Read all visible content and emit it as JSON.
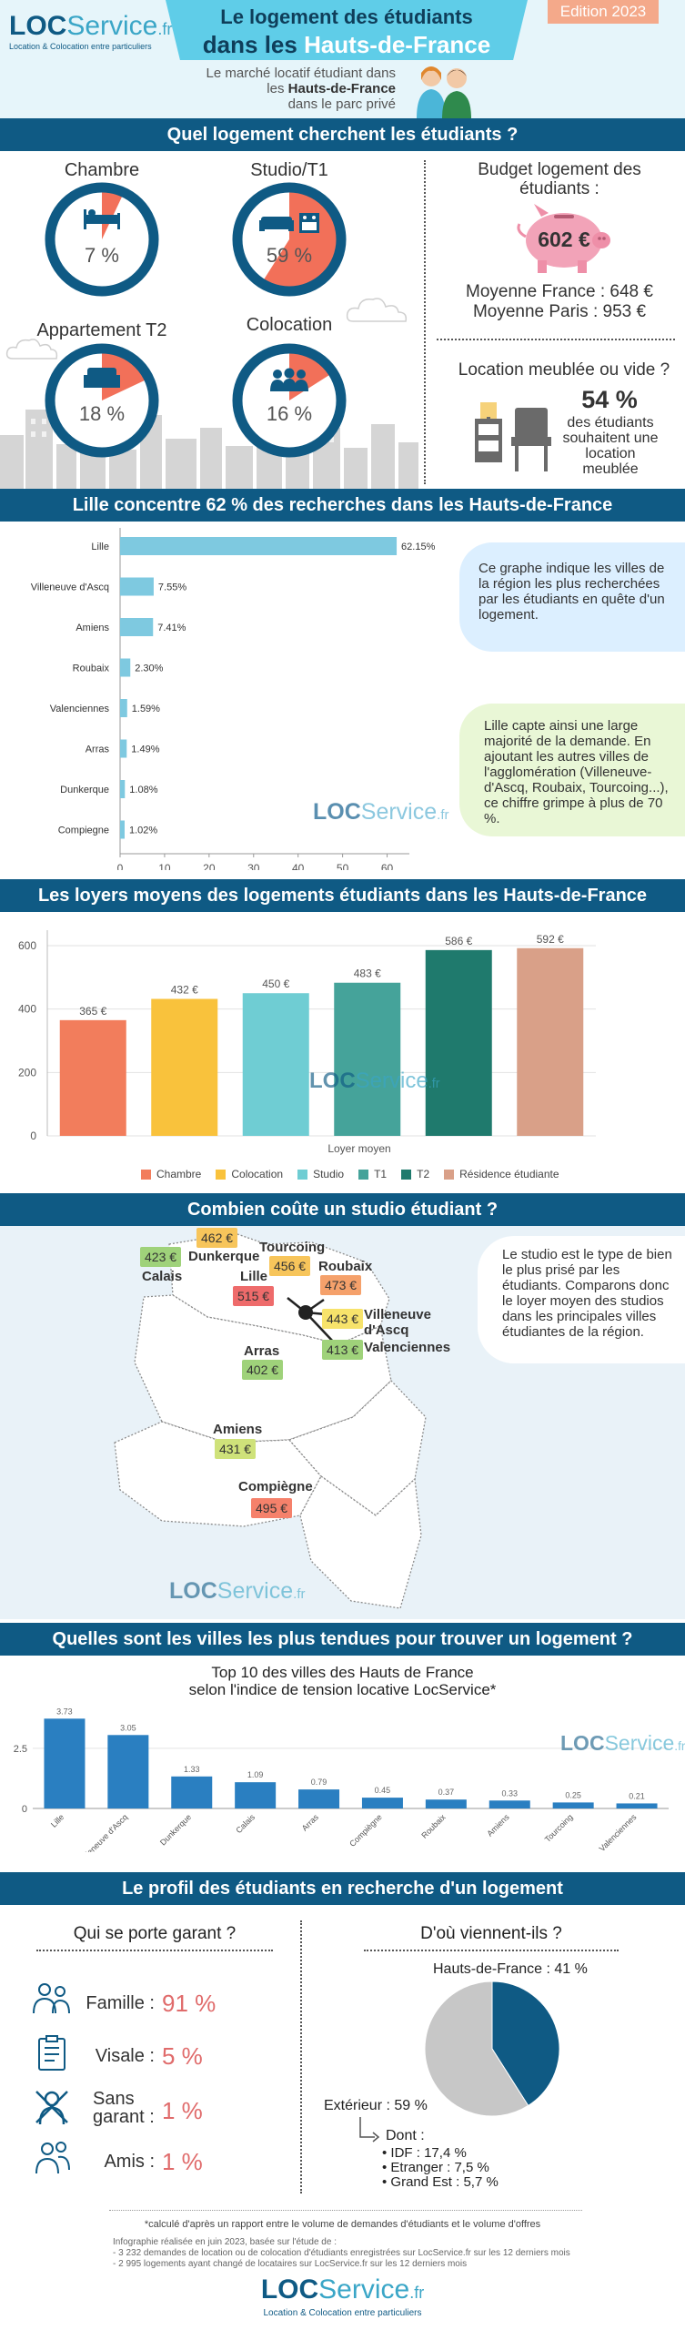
{
  "header": {
    "logo_bold": "LOC",
    "logo_light": "Service",
    "logo_tld": ".fr",
    "logo_tagline": "Location & Colocation entre particuliers",
    "title_line1": "Le logement des étudiants",
    "title_line2_prefix": "dans les ",
    "title_line2_accent": "Hauts-de-France",
    "edition": "Edition 2023",
    "sub1": "Le marché locatif étudiant dans",
    "sub2_prefix": "les ",
    "sub2_bold": "Hauts-de-France",
    "sub3": "dans le parc privé"
  },
  "sec1": {
    "title": "Quel logement cherchent les étudiants ?",
    "rings": [
      {
        "label": "Chambre",
        "pct_text": "7 %",
        "pct": 7,
        "icon": "bed-icon"
      },
      {
        "label": "Studio/T1",
        "pct_text": "59 %",
        "pct": 59,
        "icon": "sofa-kitchen-icon"
      },
      {
        "label": "Appartement T2",
        "pct_text": "18 %",
        "pct": 18,
        "icon": "sofa-icon"
      },
      {
        "label": "Colocation",
        "pct_text": "16 %",
        "pct": 16,
        "icon": "people-icon"
      }
    ],
    "budget_title": "Budget logement des étudiants :",
    "budget_value": "602 €",
    "avg_france": "Moyenne France : 648 €",
    "avg_paris": "Moyenne Paris : 953 €",
    "furn_title": "Location meublée ou vide ?",
    "furn_pct": "54 %",
    "furn_text": "des étudiants souhaitent une location meublée"
  },
  "sec2": {
    "title": "Lille concentre 62 % des recherches dans les Hauts-de-France",
    "note1": "Ce graphe indique les villes de la région les plus recherchées par les étudiants en quête d'un logement.",
    "note2": "Lille capte ainsi une large majorité de la demande. En ajoutant les autres villes de l'agglomération (Villeneuve-d'Ascq, Roubaix, Tourcoing...), ce chiffre grimpe à plus de 70 %."
  },
  "sec3": {
    "title": "Les loyers moyens des logements étudiants dans les Hauts-de-France",
    "xlabel": "Loyer moyen"
  },
  "sec4": {
    "title": "Combien coûte un studio étudiant ?",
    "note": "Le studio est le type de bien le plus prisé par les étudiants. Comparons donc le loyer moyen des studios dans les principales villes étudiantes de la région.",
    "cities": [
      {
        "name": "Calais",
        "price": "423 €",
        "color": "#9fd27a"
      },
      {
        "name": "Dunkerque",
        "price": "462 €",
        "color": "#f7c55b"
      },
      {
        "name": "Tourcoing",
        "price": "456 €",
        "color": "#f7c55b"
      },
      {
        "name": "Roubaix",
        "price": "473 €",
        "color": "#f5a16b"
      },
      {
        "name": "Lille",
        "price": "515 €",
        "color": "#ee6b6b"
      },
      {
        "name": "Villeneuve d'Ascq",
        "price": "443 €",
        "color": "#f7e36b"
      },
      {
        "name": "Valenciennes",
        "price": "413 €",
        "color": "#9fd27a"
      },
      {
        "name": "Arras",
        "price": "402 €",
        "color": "#9fd27a"
      },
      {
        "name": "Amiens",
        "price": "431 €",
        "color": "#cfe27a"
      },
      {
        "name": "Compiègne",
        "price": "495 €",
        "color": "#f5816b"
      }
    ]
  },
  "sec5": {
    "title": "Quelles sont les villes les plus tendues pour trouver un logement  ?",
    "chart_title1": "Top 10 des villes des Hauts de France",
    "chart_title2": "selon l'indice de tension locative LocService*"
  },
  "sec6": {
    "title": "Le profil des étudiants en recherche d'un logement",
    "garant_title": "Qui se porte garant ?",
    "garants": [
      {
        "label": "Famille :",
        "value": "91 %",
        "icon": "family-icon"
      },
      {
        "label": "Visale :",
        "value": "5 %",
        "icon": "document-icon"
      },
      {
        "label": "Sans garant :",
        "value": "1 %",
        "icon": "no-guarantor-icon"
      },
      {
        "label": "Amis :",
        "value": "1 %",
        "icon": "friends-icon"
      }
    ],
    "origin_title": "D'où viennent-ils ?",
    "origin_hdf": "Hauts-de-France : 41 %",
    "origin_ext": "Extérieur : 59 %",
    "dont": "Dont :",
    "details": [
      "IDF : 17,4 %",
      "Etranger : 7,5 %",
      "Grand Est : 5,7 %"
    ]
  },
  "footer": {
    "note": "*calculé d'après un rapport entre le volume de demandes d'étudiants et le volume d'offres",
    "study": "Infographie réalisée en juin 2023, basée sur l'étude de :",
    "line1": "- 3 232 demandes de location ou de colocation d'étudiants enregistrées sur LocService.fr sur les 12 derniers mois",
    "line2": "- 2 995 logements ayant changé de locataires sur LocService.fr sur les 12 derniers mois"
  },
  "colors": {
    "navy": "#0f5a84",
    "ring": "#0f5a84",
    "accent": "#f27059",
    "bar_city": "#7ec9e0",
    "tension_bar": "#2a7fc1",
    "pie_hdf": "#0f5a84",
    "pie_ext": "#c7c7c7"
  },
  "chart_data": [
    {
      "type": "bar",
      "orientation": "horizontal",
      "categories": [
        "Lille",
        "Villeneuve d'Ascq",
        "Amiens",
        "Roubaix",
        "Valenciennes",
        "Arras",
        "Dunkerque",
        "Compiegne"
      ],
      "values": [
        62.15,
        7.55,
        7.41,
        2.3,
        1.59,
        1.49,
        1.08,
        1.02
      ],
      "labels": [
        "62.15%",
        "7.55%",
        "7.41%",
        "2.30%",
        "1.59%",
        "1.49%",
        "1.08%",
        "1.02%"
      ],
      "xlim": [
        0,
        65
      ],
      "xticks": [
        0,
        10,
        20,
        30,
        40,
        50,
        60
      ]
    },
    {
      "type": "bar",
      "categories": [
        "Chambre",
        "Colocation",
        "Studio",
        "T1",
        "T2",
        "Résidence étudiante"
      ],
      "values": [
        365,
        432,
        450,
        483,
        586,
        592
      ],
      "labels": [
        "365 €",
        "432 €",
        "450 €",
        "483 €",
        "586 €",
        "592 €"
      ],
      "colors": [
        "#f27d5c",
        "#f9c23c",
        "#6fcdd3",
        "#45a39a",
        "#1f7a6d",
        "#d9a088"
      ],
      "xlabel": "Loyer moyen",
      "ylim": [
        0,
        620
      ],
      "yticks": [
        0,
        200,
        400,
        600
      ],
      "legend": "bottom"
    },
    {
      "type": "bar",
      "categories": [
        "Lille",
        "Villeneuve d'Ascq",
        "Dunkerque",
        "Calais",
        "Arras",
        "Compiègne",
        "Roubaix",
        "Amiens",
        "Tourcoing",
        "Valenciennes"
      ],
      "values": [
        3.73,
        3.05,
        1.33,
        1.09,
        0.79,
        0.45,
        0.37,
        0.33,
        0.25,
        0.21
      ],
      "labels": [
        "3.73",
        "3.05",
        "1.33",
        "1.09",
        "0.79",
        "0.45",
        "0.37",
        "0.33",
        "0.25",
        "0.21"
      ],
      "ylim": [
        0,
        4
      ],
      "yticks": [
        0,
        2.5
      ],
      "ytick_labels": [
        "0",
        "2.5"
      ]
    },
    {
      "type": "pie",
      "categories": [
        "Hauts-de-France",
        "Extérieur"
      ],
      "values": [
        41,
        59
      ]
    }
  ]
}
